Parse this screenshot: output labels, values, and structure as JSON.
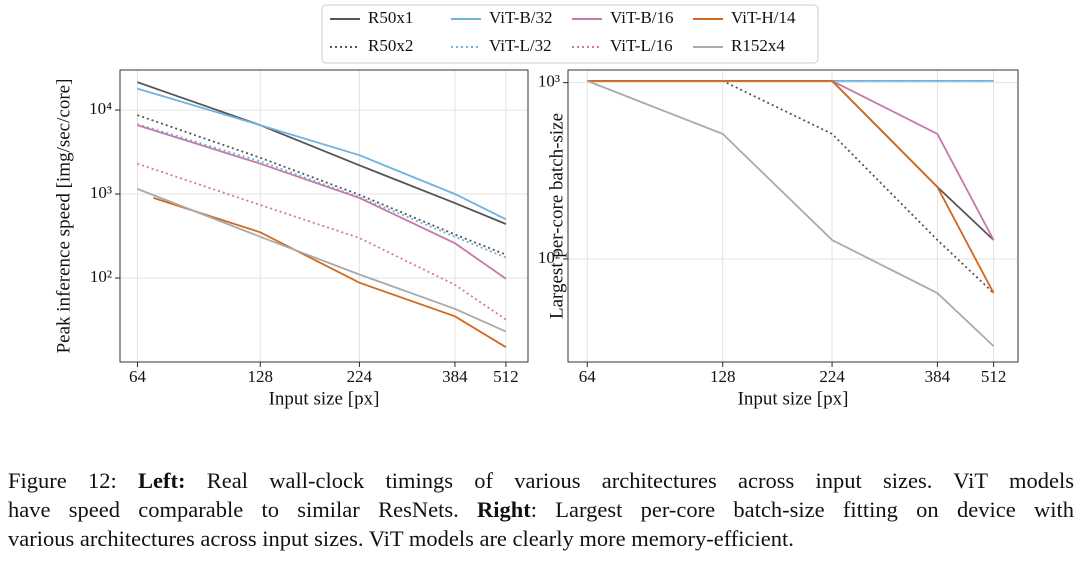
{
  "chart_data": [
    {
      "type": "line",
      "xlabel": "Input size [px]",
      "ylabel": "Peak inference speed [img/sec/core]",
      "xscale": "log",
      "yscale": "log",
      "grid": true,
      "x": [
        64,
        128,
        224,
        384,
        512
      ],
      "xlim": [
        58,
        580
      ],
      "xticks": [
        64,
        128,
        224,
        384,
        512
      ],
      "ylim": [
        10,
        30000
      ],
      "yticks": [
        {
          "value": 100,
          "label": "10²"
        },
        {
          "value": 1000,
          "label": "10³"
        },
        {
          "value": 10000,
          "label": "10⁴"
        }
      ],
      "legend": "upper center",
      "series": [
        {
          "name": "R50x1",
          "color": "#555555",
          "style": "solid",
          "values": [
            21500,
            6600,
            2200,
            780,
            440
          ]
        },
        {
          "name": "R50x2",
          "color": "#555555",
          "style": "dotted",
          "values": [
            8700,
            2700,
            980,
            330,
            190
          ]
        },
        {
          "name": "ViT-B/32",
          "color": "#6fb3e0",
          "style": "solid",
          "values": [
            18000,
            6600,
            2900,
            1000,
            500
          ]
        },
        {
          "name": "ViT-L/32",
          "color": "#6fb3e0",
          "style": "dotted",
          "values": [
            6800,
            2450,
            920,
            310,
            175
          ]
        },
        {
          "name": "ViT-B/16",
          "color": "#c878a8",
          "style": "solid",
          "values": [
            6600,
            2300,
            900,
            260,
            98
          ]
        },
        {
          "name": "ViT-L/16",
          "color": "#d8798a",
          "style": "dotted",
          "values": [
            2300,
            740,
            300,
            83,
            32
          ]
        },
        {
          "name": "ViT-H/14",
          "color": "#d2691e",
          "style": "solid",
          "x": [
            70,
            128,
            224,
            384,
            512
          ],
          "values": [
            900,
            350,
            88,
            35,
            15
          ]
        },
        {
          "name": "R152x4",
          "color": "#aaaaaa",
          "style": "solid",
          "values": [
            1150,
            310,
            110,
            43,
            23
          ]
        }
      ]
    },
    {
      "type": "line",
      "xlabel": "Input size [px]",
      "ylabel": "Largest per-core batch-size",
      "xscale": "log",
      "yscale": "log",
      "grid": true,
      "x": [
        64,
        128,
        224,
        384,
        512
      ],
      "xlim": [
        58,
        580
      ],
      "xticks": [
        64,
        128,
        224,
        384,
        512
      ],
      "ylim": [
        26,
        1180
      ],
      "yticks": [
        {
          "value": 100,
          "label": "10²"
        },
        {
          "value": 1000,
          "label": "10³"
        }
      ],
      "series": [
        {
          "name": "R50x1",
          "color": "#555555",
          "style": "solid",
          "values": [
            1024,
            1024,
            1024,
            256,
            128
          ]
        },
        {
          "name": "R50x2",
          "color": "#555555",
          "style": "dotted",
          "values": [
            1024,
            1024,
            512,
            128,
            64
          ]
        },
        {
          "name": "ViT-B/32",
          "color": "#6fb3e0",
          "style": "solid",
          "values": [
            1024,
            1024,
            1024,
            1024,
            1024
          ]
        },
        {
          "name": "ViT-L/32",
          "color": "#6fb3e0",
          "style": "dotted",
          "values": [
            1024,
            1024,
            1024,
            1024,
            1024
          ]
        },
        {
          "name": "ViT-B/16",
          "color": "#c878a8",
          "style": "solid",
          "values": [
            1024,
            1024,
            1024,
            512,
            128
          ]
        },
        {
          "name": "ViT-L/16",
          "color": "#d8798a",
          "style": "dotted",
          "values": [
            1024,
            1024,
            1024,
            256,
            64
          ]
        },
        {
          "name": "ViT-H/14",
          "color": "#d2691e",
          "style": "solid",
          "values": [
            1024,
            1024,
            1024,
            256,
            64
          ]
        },
        {
          "name": "R152x4",
          "color": "#aaaaaa",
          "style": "solid",
          "values": [
            1024,
            512,
            128,
            64,
            32
          ]
        }
      ]
    }
  ],
  "caption": {
    "lines": [
      [
        {
          "text": "Figure 12: ",
          "bold": false
        },
        {
          "text": "Left:",
          "bold": true
        },
        {
          "text": " Real wall-clock timings of various architectures across input sizes. ViT models",
          "bold": false
        }
      ],
      [
        {
          "text": "have speed comparable to similar ResNets. ",
          "bold": false
        },
        {
          "text": "Right",
          "bold": true
        },
        {
          "text": ": Largest per-core batch-size fitting on device with",
          "bold": false
        }
      ],
      [
        {
          "text": "various architectures across input sizes. ViT models are clearly more memory-efficient.",
          "bold": false
        }
      ]
    ]
  }
}
